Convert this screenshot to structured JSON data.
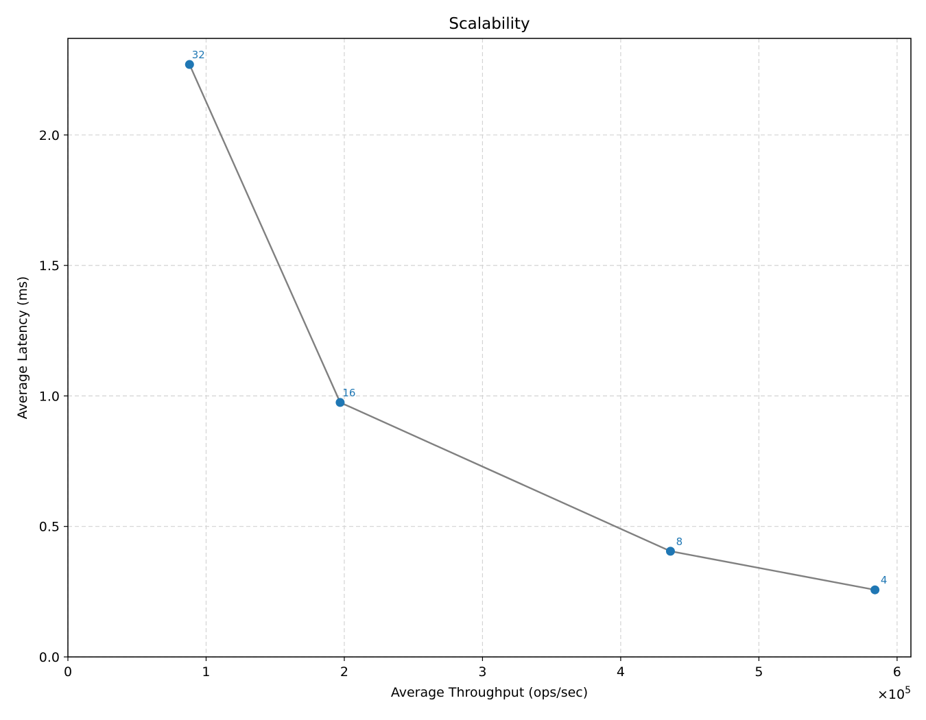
{
  "chart_data": {
    "type": "scatter",
    "title": "Scalability",
    "xlabel": "Average Throughput (ops/sec)",
    "ylabel": "Average Latency (ms)",
    "x_scale_label": "×10",
    "x_scale_exponent": "5",
    "x_scale_multiplier": 100000,
    "xlim": [
      0,
      610000
    ],
    "ylim": [
      0,
      2.37
    ],
    "xticks": [
      0,
      100000,
      200000,
      300000,
      400000,
      500000,
      600000
    ],
    "xtick_labels": [
      "0",
      "1",
      "2",
      "3",
      "4",
      "5",
      "6"
    ],
    "yticks": [
      0.0,
      0.5,
      1.0,
      1.5,
      2.0
    ],
    "ytick_labels": [
      "0.0",
      "0.5",
      "1.0",
      "1.5",
      "2.0"
    ],
    "grid": true,
    "legend": "none",
    "line_color": "#808080",
    "point_color": "#1f77b4",
    "series": [
      {
        "points": [
          {
            "x": 88000,
            "y": 2.27,
            "label": "32"
          },
          {
            "x": 197000,
            "y": 0.975,
            "label": "16"
          },
          {
            "x": 436000,
            "y": 0.405,
            "label": "8"
          },
          {
            "x": 584000,
            "y": 0.257,
            "label": "4"
          }
        ]
      }
    ]
  }
}
